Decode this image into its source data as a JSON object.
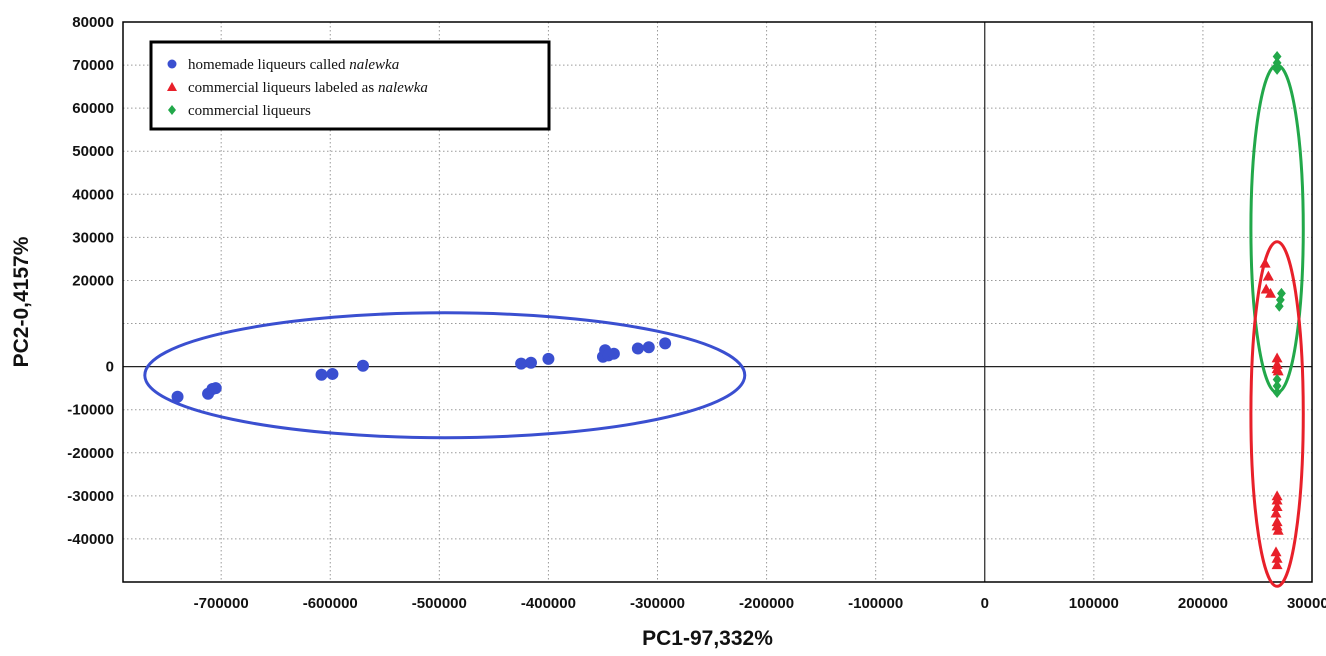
{
  "chart_data": {
    "type": "scatter",
    "title": "",
    "xlabel": "PC1-97,332%",
    "ylabel": "PC2-0,4157%",
    "xlim": [
      -790000,
      300000
    ],
    "ylim": [
      -50000,
      80000
    ],
    "grid": true,
    "legend_placement": "top-left",
    "x_ticks": [
      {
        "value": -700000,
        "label": "-700000"
      },
      {
        "value": -600000,
        "label": "-600000"
      },
      {
        "value": -500000,
        "label": "-500000"
      },
      {
        "value": -400000,
        "label": "-400000"
      },
      {
        "value": -300000,
        "label": "-300000"
      },
      {
        "value": -200000,
        "label": "-200000"
      },
      {
        "value": -100000,
        "label": "-100000"
      },
      {
        "value": 0,
        "label": "0"
      },
      {
        "value": 100000,
        "label": "100000"
      },
      {
        "value": 200000,
        "label": "200000"
      },
      {
        "value": 300000,
        "label": "300000"
      }
    ],
    "y_ticks": [
      {
        "value": 80000,
        "label": "80000"
      },
      {
        "value": 70000,
        "label": "70000"
      },
      {
        "value": 60000,
        "label": "60000"
      },
      {
        "value": 50000,
        "label": "50000"
      },
      {
        "value": 40000,
        "label": "40000"
      },
      {
        "value": 30000,
        "label": "30000"
      },
      {
        "value": 20000,
        "label": "20000"
      },
      {
        "value": 10000,
        "label": ""
      },
      {
        "value": 0,
        "label": "0"
      },
      {
        "value": -10000,
        "label": "-10000"
      },
      {
        "value": -20000,
        "label": "-20000"
      },
      {
        "value": -30000,
        "label": "-30000"
      },
      {
        "value": -40000,
        "label": "-40000"
      }
    ],
    "series": [
      {
        "name": "homemade liqueurs called nalewka",
        "legend_plain": "homemade liqueurs called ",
        "legend_italic": "nalewka",
        "marker": "circle",
        "color": "#3a4fd0",
        "points": [
          [
            -740000,
            -7000
          ],
          [
            -712000,
            -6300
          ],
          [
            -708000,
            -5200
          ],
          [
            -705000,
            -5000
          ],
          [
            -608000,
            -1900
          ],
          [
            -598000,
            -1700
          ],
          [
            -570000,
            200
          ],
          [
            -425000,
            700
          ],
          [
            -416000,
            900
          ],
          [
            -400000,
            1800
          ],
          [
            -350000,
            2300
          ],
          [
            -348000,
            3800
          ],
          [
            -345000,
            2600
          ],
          [
            -340000,
            3000
          ],
          [
            -318000,
            4200
          ],
          [
            -308000,
            4500
          ],
          [
            -293000,
            5400
          ]
        ]
      },
      {
        "name": "commercial liqueurs labeled as nalewka",
        "legend_plain": "commercial liqueurs labeled as ",
        "legend_italic": "nalewka",
        "marker": "triangle",
        "color": "#e8202a",
        "points": [
          [
            257000,
            24000
          ],
          [
            260000,
            21000
          ],
          [
            262000,
            17000
          ],
          [
            258000,
            18000
          ],
          [
            268000,
            2000
          ],
          [
            268000,
            500
          ],
          [
            268000,
            -500
          ],
          [
            269000,
            -1000
          ],
          [
            268000,
            -30000
          ],
          [
            268000,
            -31000
          ],
          [
            268000,
            -32500
          ],
          [
            267000,
            -34000
          ],
          [
            268000,
            -36000
          ],
          [
            268000,
            -37000
          ],
          [
            269000,
            -38000
          ],
          [
            267000,
            -43000
          ],
          [
            268000,
            -44500
          ],
          [
            268000,
            -46000
          ]
        ]
      },
      {
        "name": "commercial liqueurs",
        "legend_plain": "commercial liqueurs",
        "legend_italic": "",
        "marker": "diamond",
        "color": "#22a84a",
        "points": [
          [
            268000,
            72000
          ],
          [
            268000,
            70500
          ],
          [
            268000,
            69000
          ],
          [
            272000,
            17000
          ],
          [
            271000,
            15500
          ],
          [
            270000,
            14000
          ],
          [
            268000,
            -3000
          ],
          [
            268000,
            -4500
          ],
          [
            268000,
            -6000
          ]
        ]
      }
    ],
    "ellipses": [
      {
        "series": "homemade liqueurs called nalewka",
        "cx": -495000,
        "cy": -2000,
        "rx": 275000,
        "ry": 14500,
        "color": "#3a4fd0"
      },
      {
        "series": "commercial liqueurs",
        "cx": 268000,
        "cy": 32000,
        "rx": 24000,
        "ry": 38000,
        "color": "#22a84a"
      },
      {
        "series": "commercial liqueurs labeled as nalewka",
        "cx": 268000,
        "cy": -11000,
        "rx": 24000,
        "ry": 40000,
        "color": "#e8202a"
      }
    ]
  }
}
